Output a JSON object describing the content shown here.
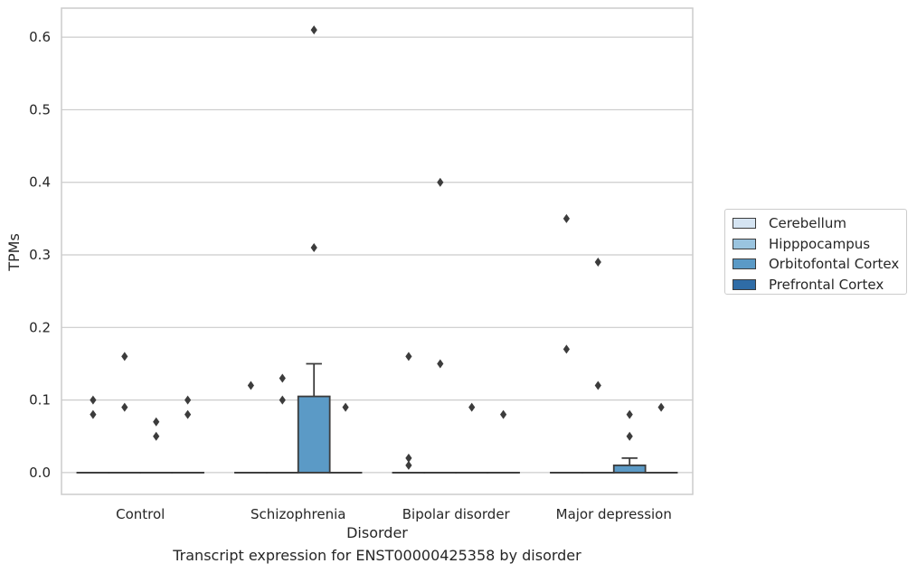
{
  "chart_data": {
    "type": "box",
    "xlabel": "Disorder",
    "ylabel": "TPMs",
    "caption": "Transcript expression for ENST00000425358 by disorder",
    "ylim": [
      -0.03,
      0.64
    ],
    "yticks": [
      0.0,
      0.1,
      0.2,
      0.3,
      0.4,
      0.5,
      0.6
    ],
    "ytick_labels": [
      "0.0",
      "0.1",
      "0.2",
      "0.3",
      "0.4",
      "0.5",
      "0.6"
    ],
    "grid": true,
    "legend_position": "right",
    "categories": [
      "Control",
      "Schizophrenia",
      "Bipolar disorder",
      "Major depression"
    ],
    "series": [
      {
        "name": "Cerebellum",
        "color": "#d5e4f2",
        "boxes": [
          {
            "q1": 0,
            "median": 0,
            "q3": 0,
            "whisker_low": 0,
            "whisker_high": 0,
            "outliers": [
              0.08,
              0.1
            ]
          },
          {
            "q1": 0,
            "median": 0,
            "q3": 0,
            "whisker_low": 0,
            "whisker_high": 0,
            "outliers": [
              0.12
            ]
          },
          {
            "q1": 0,
            "median": 0,
            "q3": 0,
            "whisker_low": 0,
            "whisker_high": 0,
            "outliers": [
              0.01,
              0.02,
              0.16
            ]
          },
          {
            "q1": 0,
            "median": 0,
            "q3": 0,
            "whisker_low": 0,
            "whisker_high": 0,
            "outliers": [
              0.17,
              0.35
            ]
          }
        ]
      },
      {
        "name": "Hipppocampus",
        "color": "#9ac4df",
        "boxes": [
          {
            "q1": 0,
            "median": 0,
            "q3": 0,
            "whisker_low": 0,
            "whisker_high": 0,
            "outliers": [
              0.09,
              0.16
            ]
          },
          {
            "q1": 0,
            "median": 0,
            "q3": 0,
            "whisker_low": 0,
            "whisker_high": 0,
            "outliers": [
              0.1,
              0.13
            ]
          },
          {
            "q1": 0,
            "median": 0,
            "q3": 0,
            "whisker_low": 0,
            "whisker_high": 0,
            "outliers": [
              0.15,
              0.4
            ]
          },
          {
            "q1": 0,
            "median": 0,
            "q3": 0,
            "whisker_low": 0,
            "whisker_high": 0,
            "outliers": [
              0.12,
              0.29
            ]
          }
        ]
      },
      {
        "name": "Orbitofontal Cortex",
        "color": "#5b9ac6",
        "boxes": [
          {
            "q1": 0,
            "median": 0,
            "q3": 0,
            "whisker_low": 0,
            "whisker_high": 0,
            "outliers": [
              0.05,
              0.07
            ]
          },
          {
            "q1": 0,
            "median": 0,
            "q3": 0.105,
            "whisker_low": 0,
            "whisker_high": 0.15,
            "outliers": [
              0.31,
              0.61
            ]
          },
          {
            "q1": 0,
            "median": 0,
            "q3": 0,
            "whisker_low": 0,
            "whisker_high": 0,
            "outliers": [
              0.09
            ]
          },
          {
            "q1": 0,
            "median": 0,
            "q3": 0.01,
            "whisker_low": 0,
            "whisker_high": 0.02,
            "outliers": [
              0.05,
              0.08
            ]
          }
        ]
      },
      {
        "name": "Prefrontal Cortex",
        "color": "#2f6ca6",
        "boxes": [
          {
            "q1": 0,
            "median": 0,
            "q3": 0,
            "whisker_low": 0,
            "whisker_high": 0,
            "outliers": [
              0.08,
              0.1
            ]
          },
          {
            "q1": 0,
            "median": 0,
            "q3": 0,
            "whisker_low": 0,
            "whisker_high": 0,
            "outliers": [
              0.09
            ]
          },
          {
            "q1": 0,
            "median": 0,
            "q3": 0,
            "whisker_low": 0,
            "whisker_high": 0,
            "outliers": [
              0.08
            ]
          },
          {
            "q1": 0,
            "median": 0,
            "q3": 0,
            "whisker_low": 0,
            "whisker_high": 0,
            "outliers": [
              0.09
            ]
          }
        ]
      }
    ]
  }
}
